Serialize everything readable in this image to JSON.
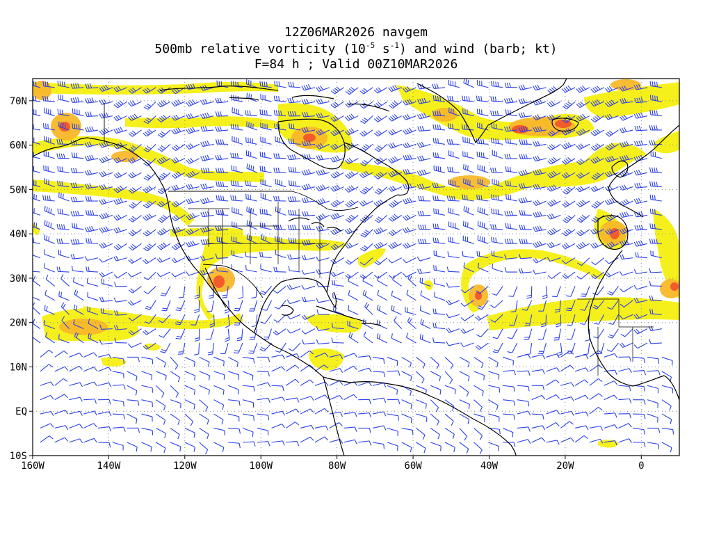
{
  "title": {
    "line1": "12Z06MAR2026 navgem",
    "line2_prefix": "500mb relative vorticity (10",
    "line2_exp1": "-5",
    "line2_mid": " s",
    "line2_exp2": "-1",
    "line2_suffix": ") and wind (barb; kt)",
    "line3": "F=84 h ; Valid 00Z10MAR2026"
  },
  "map": {
    "lon_min": -160,
    "lon_max": 10,
    "lat_min": -10,
    "lat_max": 75,
    "lon_ticks": [
      {
        "lon": -160,
        "label": "160W"
      },
      {
        "lon": -140,
        "label": "140W"
      },
      {
        "lon": -120,
        "label": "120W"
      },
      {
        "lon": -100,
        "label": "100W"
      },
      {
        "lon": -80,
        "label": "80W"
      },
      {
        "lon": -60,
        "label": "60W"
      },
      {
        "lon": -40,
        "label": "40W"
      },
      {
        "lon": -20,
        "label": "20W"
      },
      {
        "lon": 0,
        "label": "0"
      }
    ],
    "lat_ticks": [
      {
        "lat": 70,
        "label": "70N"
      },
      {
        "lat": 60,
        "label": "60N"
      },
      {
        "lat": 50,
        "label": "50N"
      },
      {
        "lat": 40,
        "label": "40N"
      },
      {
        "lat": 30,
        "label": "30N"
      },
      {
        "lat": 20,
        "label": "20N"
      },
      {
        "lat": 10,
        "label": "10N"
      },
      {
        "lat": 0,
        "label": "EQ"
      },
      {
        "lat": -10,
        "label": "10S"
      }
    ],
    "grid": "dotted",
    "colors": {
      "vort_low": "#f5f010",
      "vort_mid": "#f8b82a",
      "vort_high": "#f2552a",
      "barb": "#2a3fe8",
      "coast": "#000000"
    }
  }
}
